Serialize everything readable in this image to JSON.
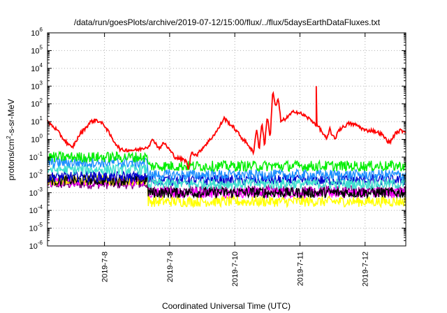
{
  "chart_data": {
    "type": "line",
    "title": "/data/run/goesPlots/archive/2019-07-12/15:00/flux/../flux/5daysEarthDataFluxes.txt",
    "xlabel": "Coordinated Universal Time (UTC)",
    "ylabel_base": "protons/cm",
    "ylabel_sup": "2",
    "ylabel_rest": "-s-sr-MeV",
    "yscale": "log",
    "ylim_exp": [
      -6,
      6
    ],
    "y_ticks": [
      {
        "base": "10",
        "exp": "-6"
      },
      {
        "base": "10",
        "exp": "-5"
      },
      {
        "base": "10",
        "exp": "-4"
      },
      {
        "base": "10",
        "exp": "-3"
      },
      {
        "base": "10",
        "exp": "-2"
      },
      {
        "base": "10",
        "exp": "-1"
      },
      {
        "base": "10",
        "exp": "0"
      },
      {
        "base": "10",
        "exp": "1"
      },
      {
        "base": "10",
        "exp": "2"
      },
      {
        "base": "10",
        "exp": "3"
      },
      {
        "base": "10",
        "exp": "4"
      },
      {
        "base": "10",
        "exp": "5"
      },
      {
        "base": "10",
        "exp": "6"
      }
    ],
    "xlim": [
      "2019-07-07 03:00",
      "2019-07-12 15:00"
    ],
    "x_ticks": [
      {
        "label": "2019-7-8",
        "t": "2019-07-08 00:00"
      },
      {
        "label": "2019-7-9",
        "t": "2019-07-09 00:00"
      },
      {
        "label": "2019-7-10",
        "t": "2019-07-10 00:00"
      },
      {
        "label": "2019-7-11",
        "t": "2019-07-11 00:00"
      },
      {
        "label": "2019-7-12",
        "t": "2019-07-12 00:00"
      }
    ],
    "grid": true,
    "series": [
      {
        "color": "#ff0000",
        "log_flux_profile": [
          [
            "2019-07-07 03:00",
            1.0
          ],
          [
            "2019-07-07 06:00",
            0.6
          ],
          [
            "2019-07-07 09:00",
            0.0
          ],
          [
            "2019-07-07 12:00",
            -0.5
          ],
          [
            "2019-07-07 15:00",
            0.3
          ],
          [
            "2019-07-07 19:00",
            1.0
          ],
          [
            "2019-07-07 21:00",
            1.1
          ],
          [
            "2019-07-08 00:00",
            0.8
          ],
          [
            "2019-07-08 03:00",
            0.0
          ],
          [
            "2019-07-08 06:00",
            -0.6
          ],
          [
            "2019-07-08 12:00",
            -0.6
          ],
          [
            "2019-07-08 16:00",
            -0.4
          ],
          [
            "2019-07-08 18:00",
            0.0
          ],
          [
            "2019-07-08 20:00",
            -0.5
          ],
          [
            "2019-07-08 22:00",
            -0.2
          ],
          [
            "2019-07-09 02:00",
            -1.0
          ],
          [
            "2019-07-09 06:00",
            -1.2
          ],
          [
            "2019-07-09 07:00",
            -1.7
          ],
          [
            "2019-07-09 08:00",
            -0.7
          ],
          [
            "2019-07-09 10:00",
            -0.9
          ],
          [
            "2019-07-09 12:00",
            -0.5
          ],
          [
            "2019-07-09 15:00",
            0.0
          ],
          [
            "2019-07-09 18:00",
            0.6
          ],
          [
            "2019-07-09 20:00",
            1.2
          ],
          [
            "2019-07-09 22:00",
            0.9
          ],
          [
            "2019-07-10 00:00",
            0.6
          ],
          [
            "2019-07-10 03:00",
            0.0
          ],
          [
            "2019-07-10 05:00",
            -0.3
          ],
          [
            "2019-07-10 07:00",
            -0.8
          ],
          [
            "2019-07-10 08:00",
            0.7
          ],
          [
            "2019-07-10 09:00",
            -0.6
          ],
          [
            "2019-07-10 10:00",
            1.0
          ],
          [
            "2019-07-10 11:00",
            -0.4
          ],
          [
            "2019-07-10 12:00",
            1.4
          ],
          [
            "2019-07-10 13:00",
            0.0
          ],
          [
            "2019-07-10 14:00",
            2.8
          ],
          [
            "2019-07-10 15:00",
            1.8
          ],
          [
            "2019-07-10 16:00",
            2.3
          ],
          [
            "2019-07-10 17:00",
            1.0
          ],
          [
            "2019-07-10 19:00",
            1.2
          ],
          [
            "2019-07-10 22:00",
            1.6
          ],
          [
            "2019-07-11 01:00",
            1.4
          ],
          [
            "2019-07-11 04:00",
            1.1
          ],
          [
            "2019-07-11 07:00",
            0.7
          ],
          [
            "2019-07-11 09:00",
            0.2
          ],
          [
            "2019-07-11 10:00",
            0.0
          ],
          [
            "2019-07-11 11:00",
            0.6
          ],
          [
            "2019-07-11 12:00",
            0.2
          ],
          [
            "2019-07-11 13:00",
            0.0
          ],
          [
            "2019-07-11 14:00",
            0.5
          ],
          [
            "2019-07-11 18:00",
            0.9
          ],
          [
            "2019-07-11 21:00",
            0.8
          ],
          [
            "2019-07-12 00:00",
            0.5
          ],
          [
            "2019-07-12 03:00",
            0.5
          ],
          [
            "2019-07-12 06:00",
            0.3
          ],
          [
            "2019-07-12 09:00",
            -0.2
          ],
          [
            "2019-07-12 11:00",
            0.3
          ],
          [
            "2019-07-12 13:00",
            0.5
          ],
          [
            "2019-07-12 15:00",
            0.45
          ]
        ],
        "spikes": [
          [
            "2019-07-11 06:00",
            3.0
          ]
        ]
      },
      {
        "color": "#00ee00",
        "log_flux_before": -1.0,
        "log_flux_after": -1.5,
        "step_time": "2019-07-08 16:00"
      },
      {
        "color": "#1e90ff",
        "log_flux_before": -1.3,
        "log_flux_after": -2.0,
        "step_time": "2019-07-08 16:00"
      },
      {
        "color": "#40e0d0",
        "log_flux_before": -1.7,
        "log_flux_after": -2.5,
        "step_time": "2019-07-08 16:00"
      },
      {
        "color": "#0000cd",
        "log_flux_before": -2.1,
        "log_flux_after": -2.3,
        "step_time": "2019-07-08 16:00"
      },
      {
        "color": "#000000",
        "log_flux_before": -2.3,
        "log_flux_after": -3.0,
        "step_time": "2019-07-08 16:00"
      },
      {
        "color": "#ffff00",
        "log_flux_before": -2.3,
        "log_flux_after": -3.5,
        "step_time": "2019-07-08 16:00"
      },
      {
        "color": "#ff00ff",
        "log_flux_before": -2.4,
        "log_flux_after": -3.0,
        "step_time": "2019-07-08 16:00"
      },
      {
        "color": "#800080",
        "log_flux_before": -2.5,
        "log_flux_after": -2.9,
        "step_time": "2019-07-08 16:00"
      }
    ]
  }
}
